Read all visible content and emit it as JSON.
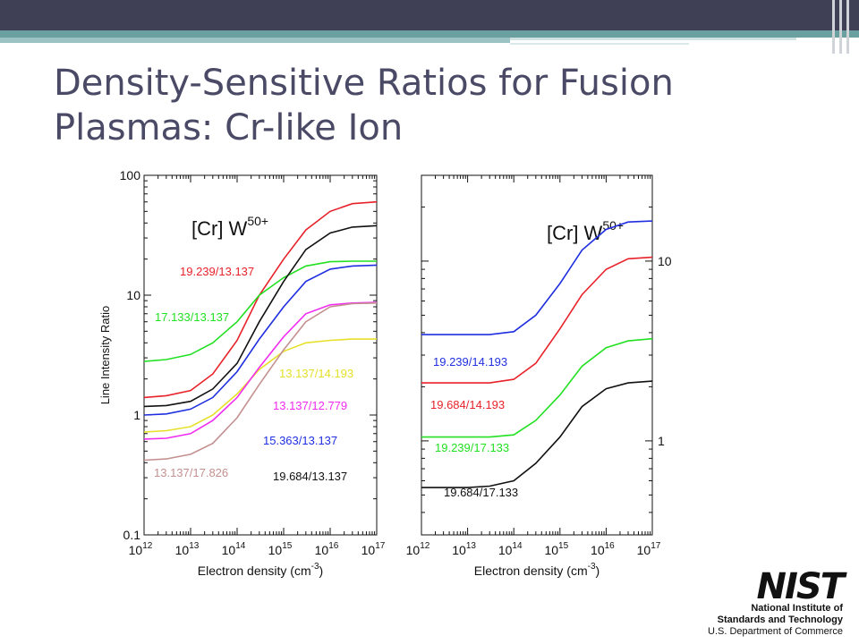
{
  "slide": {
    "title": "Density-Sensitive Ratios for Fusion Plasmas: Cr-like Ion"
  },
  "logo": {
    "mark": "NIST",
    "line1": "National Institute of",
    "line2": "Standards and Technology",
    "line3": "U.S. Department of Commerce"
  },
  "chart_data": [
    {
      "type": "line",
      "panel": "left",
      "annotation": {
        "prefix": "[Cr] W",
        "superscript": "50+"
      },
      "xlabel": "Electron density (cm",
      "xlabel_superscript": "-3",
      "xlabel_suffix": ")",
      "ylabel": "Line Intensity Ratio",
      "x_scale": "log",
      "y_scale": "log",
      "xlim": [
        1000000000000.0,
        1e+17
      ],
      "ylim": [
        0.1,
        100
      ],
      "x_tick_labels": [
        {
          "base": "10",
          "exp": "12"
        },
        {
          "base": "10",
          "exp": "13"
        },
        {
          "base": "10",
          "exp": "14"
        },
        {
          "base": "10",
          "exp": "15"
        },
        {
          "base": "10",
          "exp": "16"
        },
        {
          "base": "10",
          "exp": "17"
        }
      ],
      "y_tick_labels": [
        "100",
        "10",
        "1",
        "0.1"
      ],
      "y_ticks": [
        100,
        10,
        1,
        0.1
      ],
      "x": [
        1000000000000.0,
        3000000000000.0,
        10000000000000.0,
        30000000000000.0,
        100000000000000.0,
        300000000000000.0,
        1000000000000000.0,
        3000000000000000.0,
        1e+16,
        3e+16,
        1e+17
      ],
      "series": [
        {
          "name": "19.239/13.137",
          "color": "#e8222a",
          "values": [
            1.4,
            1.45,
            1.6,
            2.2,
            4.2,
            10,
            20,
            35,
            50,
            58,
            60
          ]
        },
        {
          "name": "17.133/13.137",
          "color": "#22e022",
          "values": [
            2.8,
            2.9,
            3.2,
            4.0,
            6.0,
            10,
            14,
            17.5,
            19,
            19.2,
            19.2
          ]
        },
        {
          "name": "13.137/14.193",
          "color": "#e6e02a",
          "values": [
            0.72,
            0.74,
            0.8,
            1.0,
            1.5,
            2.4,
            3.4,
            4.0,
            4.2,
            4.3,
            4.3
          ]
        },
        {
          "name": "13.137/12.779",
          "color": "#f02cf0",
          "values": [
            0.63,
            0.64,
            0.7,
            0.9,
            1.4,
            2.5,
            4.5,
            7.0,
            8.3,
            8.6,
            8.7
          ]
        },
        {
          "name": "15.363/13.137",
          "color": "#1f2fe0",
          "values": [
            1.0,
            1.02,
            1.12,
            1.4,
            2.3,
            4.3,
            8.0,
            13,
            16.5,
            17.5,
            17.8
          ]
        },
        {
          "name": "13.137/17.826",
          "color": "#c49090",
          "values": [
            0.42,
            0.43,
            0.47,
            0.58,
            0.95,
            1.8,
            3.5,
            6.0,
            8.0,
            8.5,
            8.6
          ]
        },
        {
          "name": "19.684/13.137",
          "color": "#111111",
          "values": [
            1.18,
            1.2,
            1.3,
            1.65,
            2.7,
            6.0,
            13,
            24,
            33,
            37,
            38
          ]
        }
      ]
    },
    {
      "type": "line",
      "panel": "right",
      "annotation": {
        "prefix": "[Cr] W",
        "superscript": "50+"
      },
      "xlabel": "Electron density (cm",
      "xlabel_superscript": "-3",
      "xlabel_suffix": ")",
      "ylabel": "",
      "x_scale": "log",
      "y_scale": "log",
      "xlim": [
        1000000000000.0,
        1e+17
      ],
      "ylim": [
        0.3,
        30
      ],
      "x_tick_labels": [
        {
          "base": "10",
          "exp": "12"
        },
        {
          "base": "10",
          "exp": "13"
        },
        {
          "base": "10",
          "exp": "14"
        },
        {
          "base": "10",
          "exp": "15"
        },
        {
          "base": "10",
          "exp": "16"
        },
        {
          "base": "10",
          "exp": "17"
        }
      ],
      "y_tick_labels": [
        "10",
        "1"
      ],
      "y_ticks": [
        10,
        1
      ],
      "x": [
        1000000000000.0,
        3000000000000.0,
        10000000000000.0,
        30000000000000.0,
        100000000000000.0,
        300000000000000.0,
        1000000000000000.0,
        3000000000000000.0,
        1e+16,
        3e+16,
        1e+17
      ],
      "series": [
        {
          "name": "19.239/14.193",
          "color": "#1f2fe0",
          "values": [
            3.9,
            3.9,
            3.9,
            3.9,
            4.05,
            5.0,
            7.5,
            11.5,
            15,
            16.5,
            16.7
          ]
        },
        {
          "name": "19.684/14.193",
          "color": "#e8222a",
          "values": [
            2.1,
            2.1,
            2.1,
            2.1,
            2.2,
            2.7,
            4.2,
            6.5,
            9.0,
            10.3,
            10.5
          ]
        },
        {
          "name": "19.239/17.133",
          "color": "#22e022",
          "values": [
            1.05,
            1.05,
            1.05,
            1.05,
            1.08,
            1.3,
            1.8,
            2.6,
            3.3,
            3.6,
            3.7
          ]
        },
        {
          "name": "19.684/17.133",
          "color": "#111111",
          "values": [
            0.55,
            0.55,
            0.55,
            0.56,
            0.6,
            0.75,
            1.05,
            1.55,
            1.95,
            2.1,
            2.15
          ]
        }
      ]
    }
  ]
}
